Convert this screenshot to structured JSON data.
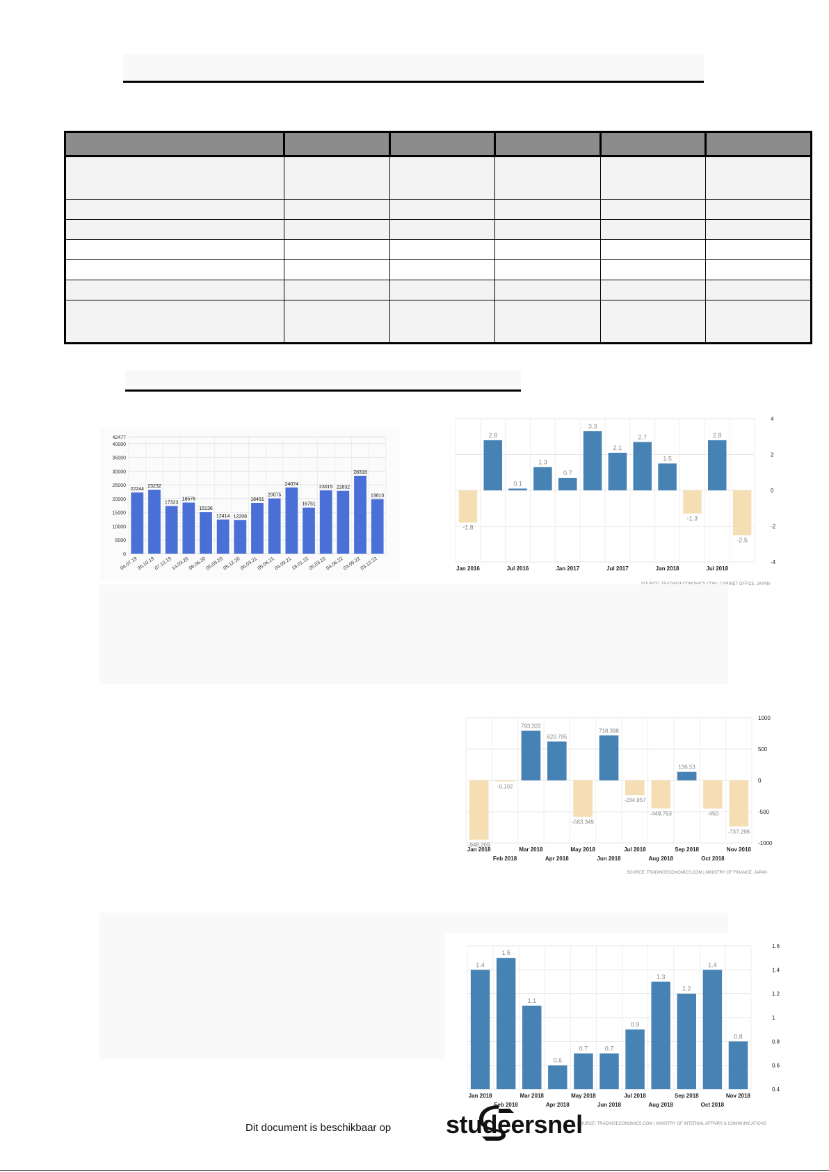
{
  "chart_data": [
    {
      "type": "bar",
      "categories": [
        "04.07.19",
        "26.10.19",
        "07.12.19",
        "14.03.20",
        "06.06.20",
        "05.09.20",
        "05.12.20",
        "06.03.21",
        "05.06.21",
        "04.09.21",
        "18.01.22",
        "05.03.22",
        "04.06.22",
        "03.09.22",
        "03.12.22"
      ],
      "values": [
        22244,
        23232,
        17323,
        18576,
        15136,
        12414,
        12208,
        18451,
        20075,
        24074,
        16751,
        23015,
        22832,
        28318,
        19810
      ],
      "y_ticks": [
        "42477",
        "40000",
        "35000",
        "30000",
        "25000",
        "20000",
        "15000",
        "10000",
        "5000",
        "0"
      ],
      "ylim": [
        0,
        42477
      ],
      "grid": true,
      "bar_color": "#4a6fd7"
    },
    {
      "type": "bar",
      "values": [
        -1.8,
        2.8,
        0.1,
        1.3,
        0.7,
        3.3,
        2.1,
        2.7,
        1.5,
        -1.3,
        2.8,
        -2.5
      ],
      "labels": [
        "-1.8",
        "2.8",
        "0.1",
        "1.3",
        "0.7",
        "3.3",
        "2.1",
        "2.7",
        "1.5",
        "-1.3",
        "2.8",
        "-2.5"
      ],
      "x_tick_labels": [
        "Jan 2016",
        "Jul 2016",
        "Jan 2017",
        "Jul 2017",
        "Jan 2018",
        "Jul 2018"
      ],
      "y_ticks": [
        "4",
        "2",
        "0",
        "-2",
        "-4"
      ],
      "ylim": [
        -4,
        4
      ],
      "source": "SOURCE: TRADINGECONOMICS.COM | CABINET OFFICE, JAPAN",
      "positive_color": "#4682b4",
      "negative_color": "#f5deb3"
    },
    {
      "type": "bar",
      "values": [
        -948.269,
        -0.102,
        793.322,
        620.795,
        -583.349,
        718.398,
        -234.957,
        -448.753,
        136.53,
        -450,
        -737.296
      ],
      "labels": [
        "-948.269",
        "-0.102",
        "793.322",
        "620.795",
        "-583.349",
        "718.398",
        "-234.957",
        "-448.753",
        "136.53",
        "-450",
        "-737.296"
      ],
      "x_tick_labels": [
        "Jan 2018",
        "Feb 2018",
        "Mar 2018",
        "Apr 2018",
        "May 2018",
        "Jun 2018",
        "Jul 2018",
        "Aug 2018",
        "Sep 2018",
        "Oct 2018",
        "Nov 2018"
      ],
      "y_ticks": [
        "1000",
        "500",
        "0",
        "-500",
        "-1000"
      ],
      "ylim": [
        -1000,
        1000
      ],
      "source": "SOURCE: TRADINGECONOMICS.COM | MINISTRY OF FINANCE, JAPAN",
      "positive_color": "#4682b4",
      "negative_color": "#f5deb3"
    },
    {
      "type": "bar",
      "values": [
        1.4,
        1.5,
        1.1,
        0.6,
        0.7,
        0.7,
        0.9,
        1.3,
        1.2,
        1.4,
        0.8
      ],
      "labels": [
        "1.4",
        "1.5",
        "1.1",
        "0.6",
        "0.7",
        "0.7",
        "0.9",
        "1.3",
        "1.2",
        "1.4",
        "0.8"
      ],
      "x_tick_labels": [
        "Jan 2018",
        "Feb 2018",
        "Mar 2018",
        "Apr 2018",
        "May 2018",
        "Jun 2018",
        "Jul 2018",
        "Aug 2018",
        "Sep 2018",
        "Oct 2018",
        "Nov 2018"
      ],
      "y_ticks": [
        "1.6",
        "1.4",
        "1.2",
        "1",
        "0.8",
        "0.6",
        "0.4"
      ],
      "ylim": [
        0.4,
        1.6
      ],
      "source": "SOURCE: TRADINGECONOMICS.COM | MINISTRY OF INTERNAL AFFAIRS & COMMUNICATIONS",
      "bar_color": "#4682b4"
    }
  ],
  "footer": {
    "available_text": "Dit document is beschikbaar op",
    "brand": "studeersnel"
  }
}
